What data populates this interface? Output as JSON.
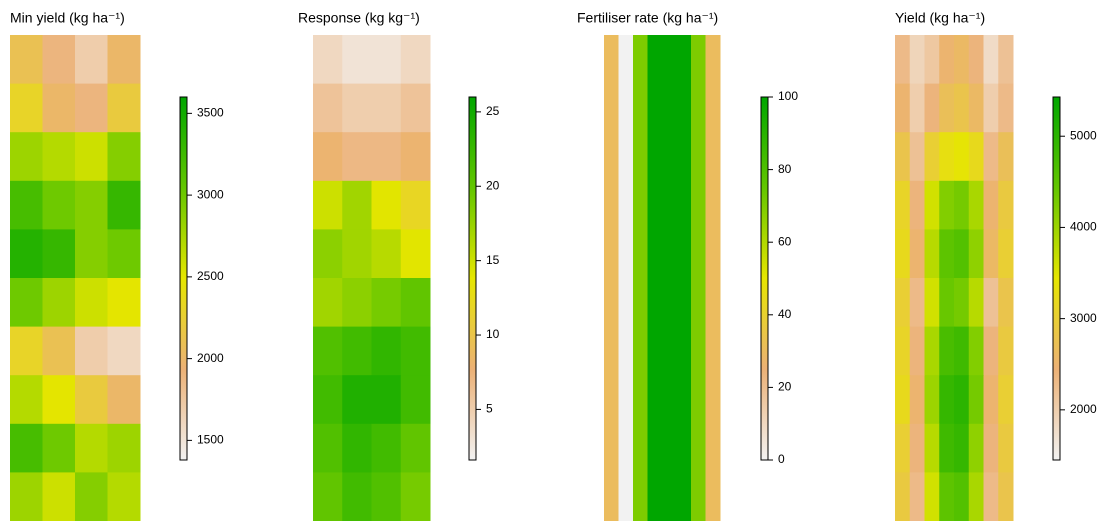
{
  "chart_data": [
    {
      "type": "heatmap",
      "title": "Min yield (kg ha⁻¹)",
      "z": [
        [
          2100,
          1900,
          1700,
          2000
        ],
        [
          2300,
          2000,
          1900,
          2200
        ],
        [
          2800,
          2700,
          2600,
          2900
        ],
        [
          3200,
          3000,
          2900,
          3300
        ],
        [
          3400,
          3300,
          2900,
          3000
        ],
        [
          3000,
          2800,
          2600,
          2500
        ],
        [
          2300,
          2100,
          1700,
          1600
        ],
        [
          2700,
          2500,
          2200,
          2000
        ],
        [
          3200,
          3000,
          2700,
          2800
        ],
        [
          2800,
          2600,
          2900,
          2700
        ]
      ],
      "zlim": [
        1380,
        3600
      ],
      "zticks": [
        1500,
        2000,
        2500,
        3000,
        3500
      ],
      "colors": [
        "#f2f2f2",
        "#ecb176",
        "#e6e600",
        "#63c600",
        "#00a600"
      ]
    },
    {
      "type": "heatmap",
      "title": "Response (kg kg⁻¹)",
      "z": [
        [
          4,
          3,
          3,
          4
        ],
        [
          6,
          5,
          5,
          6
        ],
        [
          8,
          7,
          7,
          8
        ],
        [
          15,
          17,
          14,
          12
        ],
        [
          18,
          17,
          16,
          14
        ],
        [
          17,
          18,
          19,
          20
        ],
        [
          21,
          22,
          23,
          22
        ],
        [
          22,
          24,
          24,
          22
        ],
        [
          21,
          23,
          22,
          20
        ],
        [
          20,
          22,
          21,
          19
        ]
      ],
      "zlim": [
        1.6,
        26
      ],
      "zticks": [
        5,
        10,
        15,
        20,
        25
      ],
      "colors": [
        "#f2f2f2",
        "#ecb176",
        "#e6e600",
        "#63c600",
        "#00a600"
      ]
    },
    {
      "type": "heatmap",
      "title": "Fertiliser rate (kg ha⁻¹)",
      "z": [
        [
          30,
          0,
          70,
          100,
          100,
          100,
          70,
          30
        ]
      ],
      "zlim": [
        0,
        100
      ],
      "zticks": [
        0,
        20,
        40,
        60,
        80,
        100
      ],
      "colors": [
        "#f2f2f2",
        "#ecb176",
        "#e6e600",
        "#63c600",
        "#00a600"
      ]
    },
    {
      "type": "heatmap",
      "title": "Yield (kg ha⁻¹)",
      "z": [
        [
          2300,
          1900,
          2100,
          2500,
          2600,
          2400,
          1800,
          2200
        ],
        [
          2500,
          2000,
          2400,
          2700,
          2800,
          2600,
          2000,
          2300
        ],
        [
          2800,
          2200,
          3000,
          3300,
          3400,
          3200,
          2300,
          2700
        ],
        [
          3100,
          2400,
          3600,
          4200,
          4300,
          3900,
          2500,
          2900
        ],
        [
          3200,
          2500,
          3800,
          4500,
          4600,
          4100,
          2600,
          3000
        ],
        [
          3000,
          2300,
          3600,
          4400,
          4300,
          3800,
          2200,
          2800
        ],
        [
          3100,
          2400,
          3900,
          4700,
          4800,
          4200,
          2400,
          2900
        ],
        [
          3200,
          2500,
          4000,
          4900,
          5000,
          4300,
          2500,
          3000
        ],
        [
          3000,
          2400,
          3800,
          4800,
          4900,
          4100,
          2400,
          2900
        ],
        [
          2900,
          2300,
          3600,
          4500,
          4600,
          3900,
          2300,
          2800
        ]
      ],
      "zlim": [
        1450,
        5430
      ],
      "zticks": [
        2000,
        3000,
        4000,
        5000
      ],
      "colors": [
        "#f2f2f2",
        "#ecb176",
        "#e6e600",
        "#63c600",
        "#00a600"
      ]
    }
  ]
}
